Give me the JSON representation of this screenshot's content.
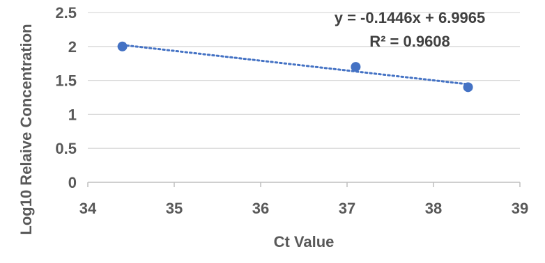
{
  "chart_data": {
    "type": "scatter",
    "xlabel": "Ct Value",
    "ylabel": "Log10 Relaive Concentration",
    "xlim": [
      34,
      39
    ],
    "ylim": [
      0,
      2.5
    ],
    "x_ticks": [
      "34",
      "35",
      "36",
      "37",
      "38",
      "39"
    ],
    "y_ticks": [
      "0",
      "0.5",
      "1",
      "1.5",
      "2",
      "2.5"
    ],
    "grid": "horizontal",
    "series": [
      {
        "x": [
          34.4,
          37.1,
          38.4
        ],
        "y": [
          2.0,
          1.7,
          1.4
        ]
      }
    ],
    "trendline": {
      "type": "linear",
      "slope": -0.1446,
      "intercept": 6.9965,
      "equation": "y = -0.1446x + 6.9965",
      "r_squared": "R² = 0.9608"
    },
    "colors": {
      "marker": "#4472C4",
      "trendline": "#4472C4",
      "grid": "#D9D9D9",
      "axis": "#BFBFBF",
      "text": "#595959"
    }
  }
}
